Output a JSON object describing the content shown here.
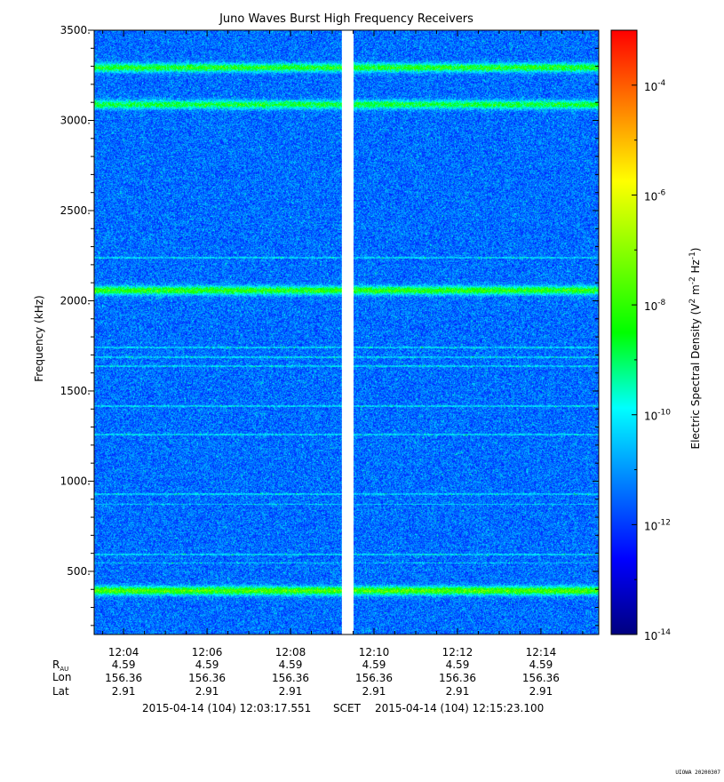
{
  "chart_data": {
    "type": "heatmap",
    "title": "Juno Waves Burst High Frequency Receivers",
    "ylabel": "Frequency (kHz)",
    "ylim": [
      150,
      3500
    ],
    "y_ticks": [
      {
        "value": 500,
        "label": "500."
      },
      {
        "value": 1000,
        "label": "1000."
      },
      {
        "value": 1500,
        "label": "1500."
      },
      {
        "value": 2000,
        "label": "2000."
      },
      {
        "value": 2500,
        "label": "2500."
      },
      {
        "value": 3000,
        "label": "3000."
      },
      {
        "value": 3500,
        "label": "3500."
      }
    ],
    "x_range_minutes": [
      723.295,
      735.385
    ],
    "x_ticks": [
      {
        "minute": 724,
        "label": "12:04"
      },
      {
        "minute": 726,
        "label": "12:06"
      },
      {
        "minute": 728,
        "label": "12:08"
      },
      {
        "minute": 730,
        "label": "12:10"
      },
      {
        "minute": 732,
        "label": "12:12"
      },
      {
        "minute": 734,
        "label": "12:14"
      }
    ],
    "data_gap_minutes": [
      729.23,
      729.51
    ],
    "enhanced_bands_khz": [
      {
        "frequency": 395,
        "strength": 0.62
      },
      {
        "frequency": 2060,
        "strength": 0.55
      },
      {
        "frequency": 3090,
        "strength": 0.48
      },
      {
        "frequency": 3295,
        "strength": 0.52
      }
    ],
    "thin_lines_khz": [
      2240,
      1745,
      1690,
      1640,
      1420,
      1260,
      930,
      875,
      595,
      550
    ],
    "colorbar": {
      "label_parts": [
        "Electric Spectral Density (V",
        "2",
        " m",
        "-2",
        " Hz",
        "-1",
        ")"
      ],
      "log_range": [
        -14,
        -3
      ],
      "tick_labels": [
        {
          "exp": -4,
          "base": "10",
          "sup": "-4"
        },
        {
          "exp": -6,
          "base": "10",
          "sup": "-6"
        },
        {
          "exp": -8,
          "base": "10",
          "sup": "-8"
        },
        {
          "exp": -10,
          "base": "10",
          "sup": "-10"
        },
        {
          "exp": -12,
          "base": "10",
          "sup": "-12"
        },
        {
          "exp": -14,
          "base": "10",
          "sup": "-14"
        }
      ],
      "colors": [
        "#00007f",
        "#0000ff",
        "#007fff",
        "#00ffff",
        "#00ff00",
        "#7fff00",
        "#ffff00",
        "#ff7f00",
        "#ff0000"
      ]
    },
    "ephemeris": {
      "row_labels": {
        "r_base": "R",
        "r_sub": "AU",
        "lon": "Lon",
        "lat": "Lat"
      },
      "r_au": [
        "4.59",
        "4.59",
        "4.59",
        "4.59",
        "4.59",
        "4.59"
      ],
      "lon": [
        "156.36",
        "156.36",
        "156.36",
        "156.36",
        "156.36",
        "156.36"
      ],
      "lat": [
        "2.91",
        "2.91",
        "2.91",
        "2.91",
        "2.91",
        "2.91"
      ]
    },
    "time_span": {
      "start": "2015-04-14 (104) 12:03:17.551",
      "middle": "SCET",
      "end": "2015-04-14 (104) 12:15:23.100"
    },
    "stamp": "UIOWA 20200307"
  }
}
